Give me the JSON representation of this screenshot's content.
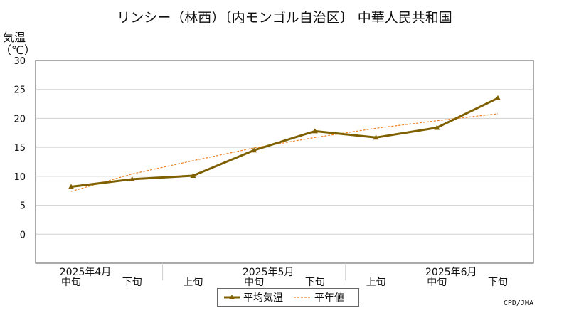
{
  "title": "リンシー（林西）〔内モンゴル自治区〕 中華人民共和国",
  "y_axis_title_line1": "気温",
  "y_axis_title_line2": "（℃）",
  "credit": "CPD/JMA",
  "colors": {
    "series": "#7f6000",
    "normal": "#f08020",
    "grid": "#d0d0d0",
    "axis": "#555555"
  },
  "chart_data": {
    "type": "line",
    "x": [
      "中旬",
      "下旬",
      "上旬",
      "中旬",
      "下旬",
      "上旬",
      "中旬",
      "下旬"
    ],
    "month_labels": [
      "2025年4月",
      "2025年5月",
      "2025年6月"
    ],
    "ylim": [
      -5,
      30
    ],
    "yticks": [
      0,
      5,
      10,
      15,
      20,
      25,
      30
    ],
    "series": [
      {
        "name": "平均気温",
        "values": [
          8.2,
          9.5,
          10.1,
          14.5,
          17.8,
          16.7,
          18.4,
          23.5
        ],
        "style": "solid-triangle-markers"
      },
      {
        "name": "平年値",
        "values": [
          7.4,
          10.4,
          12.7,
          14.9,
          16.7,
          18.3,
          19.6,
          20.8
        ],
        "style": "dashed"
      }
    ],
    "legend_position": "bottom-center",
    "grid": true
  }
}
